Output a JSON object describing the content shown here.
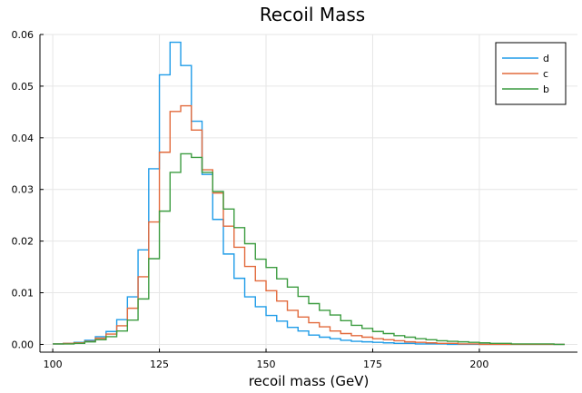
{
  "chart_data": {
    "type": "line",
    "title": "Recoil Mass",
    "xlabel": "recoil mass (GeV)",
    "ylabel": "",
    "xlim": [
      97,
      223
    ],
    "ylim": [
      -0.0015,
      0.06
    ],
    "xticks": [
      100,
      125,
      150,
      175,
      200
    ],
    "xtick_labels": [
      "100",
      "125",
      "150",
      "175",
      "200"
    ],
    "yticks": [
      0,
      0.01,
      0.02,
      0.03,
      0.04,
      0.05,
      0.06
    ],
    "ytick_labels": [
      "0.00",
      "0.01",
      "0.02",
      "0.03",
      "0.04",
      "0.05",
      "0.06"
    ],
    "grid": true,
    "legend_position": "top-right",
    "bin_edges": [
      100,
      102.5,
      105,
      107.5,
      110,
      112.5,
      115,
      117.5,
      120,
      122.5,
      125,
      127.5,
      130,
      132.5,
      135,
      137.5,
      140,
      142.5,
      145,
      147.5,
      150,
      152.5,
      155,
      157.5,
      160,
      162.5,
      165,
      167.5,
      170,
      172.5,
      175,
      177.5,
      180,
      182.5,
      185,
      187.5,
      190,
      192.5,
      195,
      197.5,
      200,
      202.5,
      205,
      207.5,
      210,
      212.5,
      215,
      217.5,
      220
    ],
    "series": [
      {
        "name": "d",
        "color": "#1f9ce8",
        "values": [
          0.0001,
          0.0002,
          0.0004,
          0.0008,
          0.0015,
          0.0025,
          0.0048,
          0.0092,
          0.0183,
          0.034,
          0.0522,
          0.0585,
          0.054,
          0.0432,
          0.0329,
          0.0242,
          0.0175,
          0.0128,
          0.0092,
          0.0073,
          0.0056,
          0.0045,
          0.0033,
          0.0026,
          0.0018,
          0.0014,
          0.0011,
          0.0008,
          0.0006,
          0.0005,
          0.0004,
          0.0003,
          0.0002,
          0.0002,
          0.0001,
          0.0001,
          0.0001,
          0,
          0,
          0,
          0,
          0,
          0,
          0,
          0,
          0,
          0,
          0
        ]
      },
      {
        "name": "c",
        "color": "#e26a3c",
        "values": [
          0.0001,
          0.0002,
          0.0003,
          0.0006,
          0.0012,
          0.002,
          0.0036,
          0.007,
          0.0131,
          0.0237,
          0.0372,
          0.0451,
          0.0462,
          0.0415,
          0.0338,
          0.0293,
          0.0229,
          0.0188,
          0.0151,
          0.0123,
          0.0104,
          0.0084,
          0.0066,
          0.0053,
          0.0042,
          0.0034,
          0.0026,
          0.0021,
          0.0017,
          0.0014,
          0.0011,
          0.0009,
          0.0007,
          0.0005,
          0.0004,
          0.0003,
          0.0002,
          0.0002,
          0.0001,
          0.0001,
          0,
          0,
          0,
          0,
          0,
          0,
          0,
          0
        ]
      },
      {
        "name": "b",
        "color": "#3c9c40",
        "values": [
          0.0001,
          0.0001,
          0.0002,
          0.0005,
          0.0009,
          0.0015,
          0.0026,
          0.0047,
          0.0088,
          0.0166,
          0.0258,
          0.0333,
          0.0369,
          0.0362,
          0.0333,
          0.0296,
          0.0262,
          0.0226,
          0.0195,
          0.0165,
          0.0149,
          0.0127,
          0.0111,
          0.0093,
          0.0079,
          0.0066,
          0.0057,
          0.0046,
          0.0037,
          0.0031,
          0.0025,
          0.0021,
          0.0017,
          0.0014,
          0.0011,
          0.0009,
          0.0007,
          0.0006,
          0.0005,
          0.0004,
          0.0003,
          0.0002,
          0.0002,
          0.0001,
          0.0001,
          0.0001,
          0.0001,
          0
        ]
      }
    ]
  }
}
